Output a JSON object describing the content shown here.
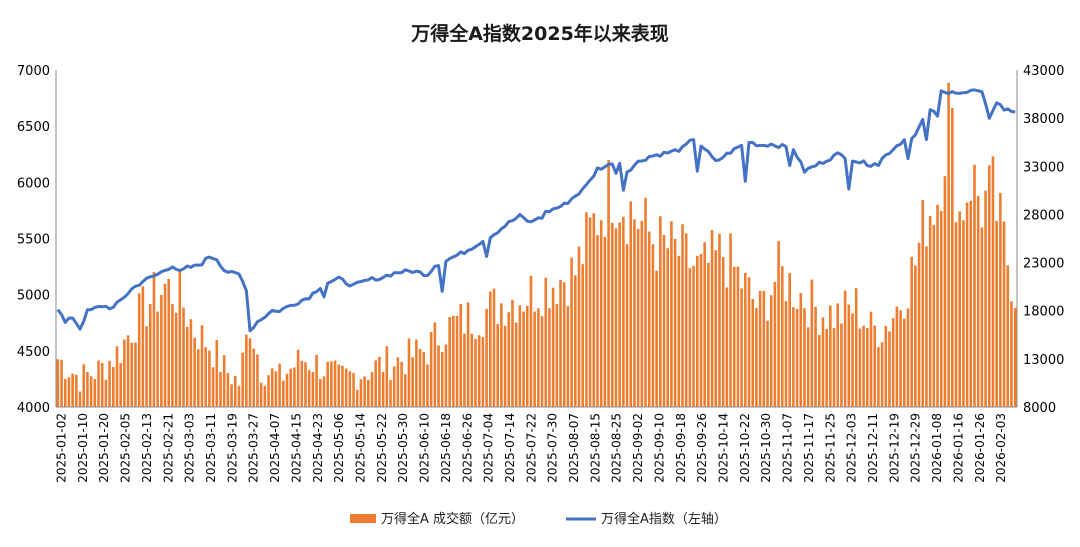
{
  "chart_data": {
    "type": "bar+line",
    "title": "万得全A指数2025年以来表现",
    "y_left": {
      "lim": [
        4000,
        7000
      ],
      "ticks": [
        "4000",
        "4500",
        "5000",
        "5500",
        "6000",
        "6500",
        "7000"
      ]
    },
    "y_right": {
      "lim": [
        8000,
        43000
      ],
      "ticks": [
        "8000",
        "13000",
        "18000",
        "23000",
        "28000",
        "33000",
        "38000",
        "43000"
      ]
    },
    "x_tick_labels": [
      "2025-01-02",
      "2025-01-10",
      "2025-01-20",
      "2025-02-05",
      "2025-02-13",
      "2025-02-21",
      "2025-03-03",
      "2025-03-11",
      "2025-03-19",
      "2025-03-27",
      "2025-04-07",
      "2025-04-15",
      "2025-04-23",
      "2025-05-06",
      "2025-05-14",
      "2025-05-22",
      "2025-05-30",
      "2025-06-10",
      "2025-06-18",
      "2025-06-26",
      "2025-07-04",
      "2025-07-14",
      "2025-07-22",
      "2025-07-30",
      "2025-08-07",
      "2025-08-15",
      "2025-08-25",
      "2025-09-02",
      "2025-09-10",
      "2025-09-18",
      "2025-09-26",
      "2025-10-14",
      "2025-10-22",
      "2025-10-30",
      "2025-11-07",
      "2025-11-17",
      "2025-11-25",
      "2025-12-03",
      "2025-12-11",
      "2025-12-19",
      "2025-12-29",
      "2026-01-08",
      "2026-01-16",
      "2026-01-26",
      "2026-02-03"
    ],
    "series": [
      {
        "name": "万得全A 成交额（亿元）",
        "axis": "right",
        "type": "bar",
        "color": "#ED7D31",
        "keypoints": [
          [
            0,
            13000
          ],
          [
            6,
            11000
          ],
          [
            12,
            12000
          ],
          [
            17,
            14000
          ],
          [
            21,
            17000
          ],
          [
            25,
            19000
          ],
          [
            29,
            20500
          ],
          [
            33,
            19500
          ],
          [
            37,
            16000
          ],
          [
            41,
            14500
          ],
          [
            45,
            12000
          ],
          [
            49,
            10500
          ],
          [
            52,
            17000
          ],
          [
            55,
            12000
          ],
          [
            60,
            11000
          ],
          [
            66,
            13000
          ],
          [
            70,
            12500
          ],
          [
            76,
            11000
          ],
          [
            82,
            11500
          ],
          [
            88,
            12500
          ],
          [
            94,
            13000
          ],
          [
            100,
            14000
          ],
          [
            104,
            16000
          ],
          [
            110,
            17000
          ],
          [
            116,
            18000
          ],
          [
            121,
            19000
          ],
          [
            126,
            19500
          ],
          [
            131,
            20500
          ],
          [
            134,
            21000
          ],
          [
            140,
            22000
          ],
          [
            145,
            27000
          ],
          [
            150,
            31000
          ],
          [
            156,
            28000
          ],
          [
            162,
            25000
          ],
          [
            168,
            24000
          ],
          [
            174,
            22000
          ],
          [
            180,
            24000
          ],
          [
            185,
            21000
          ],
          [
            190,
            18000
          ],
          [
            195,
            22000
          ],
          [
            200,
            20000
          ],
          [
            206,
            18000
          ],
          [
            211,
            17500
          ],
          [
            216,
            18500
          ],
          [
            220,
            16000
          ],
          [
            224,
            16500
          ],
          [
            228,
            19000
          ],
          [
            232,
            23000
          ],
          [
            235,
            28000
          ],
          [
            238,
            30000
          ],
          [
            241,
            39000
          ],
          [
            244,
            28000
          ],
          [
            247,
            32000
          ],
          [
            250,
            29000
          ],
          [
            253,
            30000
          ],
          [
            256,
            25000
          ],
          [
            259,
            20000
          ]
        ]
      },
      {
        "name": "万得全A指数（左轴）",
        "axis": "left",
        "type": "line",
        "color": "#4472C4",
        "keypoints": [
          [
            0,
            4880
          ],
          [
            2,
            4750
          ],
          [
            4,
            4800
          ],
          [
            6,
            4700
          ],
          [
            8,
            4850
          ],
          [
            12,
            4900
          ],
          [
            15,
            4880
          ],
          [
            17,
            4950
          ],
          [
            20,
            5050
          ],
          [
            23,
            5120
          ],
          [
            25,
            5150
          ],
          [
            27,
            5180
          ],
          [
            29,
            5220
          ],
          [
            31,
            5260
          ],
          [
            33,
            5200
          ],
          [
            35,
            5240
          ],
          [
            37,
            5250
          ],
          [
            39,
            5280
          ],
          [
            41,
            5340
          ],
          [
            43,
            5320
          ],
          [
            45,
            5220
          ],
          [
            47,
            5190
          ],
          [
            49,
            5180
          ],
          [
            51,
            5050
          ],
          [
            52,
            4680
          ],
          [
            54,
            4760
          ],
          [
            57,
            4830
          ],
          [
            60,
            4860
          ],
          [
            64,
            4920
          ],
          [
            68,
            4980
          ],
          [
            72,
            5100
          ],
          [
            76,
            5140
          ],
          [
            80,
            5080
          ],
          [
            84,
            5130
          ],
          [
            88,
            5160
          ],
          [
            92,
            5200
          ],
          [
            96,
            5210
          ],
          [
            100,
            5180
          ],
          [
            102,
            5260
          ],
          [
            106,
            5320
          ],
          [
            110,
            5380
          ],
          [
            114,
            5460
          ],
          [
            118,
            5540
          ],
          [
            122,
            5640
          ],
          [
            125,
            5700
          ],
          [
            128,
            5640
          ],
          [
            131,
            5720
          ],
          [
            134,
            5760
          ],
          [
            137,
            5800
          ],
          [
            140,
            5880
          ],
          [
            143,
            5960
          ],
          [
            146,
            6120
          ],
          [
            149,
            6150
          ],
          [
            151,
            6210
          ],
          [
            154,
            6100
          ],
          [
            157,
            6180
          ],
          [
            160,
            6230
          ],
          [
            163,
            6250
          ],
          [
            166,
            6270
          ],
          [
            169,
            6300
          ],
          [
            172,
            6390
          ],
          [
            175,
            6300
          ],
          [
            178,
            6180
          ],
          [
            181,
            6250
          ],
          [
            184,
            6310
          ],
          [
            187,
            6360
          ],
          [
            190,
            6330
          ],
          [
            193,
            6340
          ],
          [
            196,
            6320
          ],
          [
            199,
            6300
          ],
          [
            202,
            6100
          ],
          [
            205,
            6150
          ],
          [
            208,
            6200
          ],
          [
            211,
            6250
          ],
          [
            214,
            6220
          ],
          [
            217,
            6180
          ],
          [
            220,
            6160
          ],
          [
            223,
            6210
          ],
          [
            226,
            6300
          ],
          [
            229,
            6380
          ],
          [
            232,
            6420
          ],
          [
            235,
            6620
          ],
          [
            237,
            6640
          ],
          [
            239,
            6800
          ],
          [
            241,
            6790
          ],
          [
            243,
            6810
          ],
          [
            246,
            6800
          ],
          [
            248,
            6820
          ],
          [
            250,
            6790
          ],
          [
            252,
            6580
          ],
          [
            254,
            6720
          ],
          [
            256,
            6650
          ],
          [
            259,
            6630
          ]
        ],
        "overrides": [
          [
            58,
            4860
          ],
          [
            72,
            4980
          ],
          [
            86,
            5130
          ],
          [
            104,
            5030
          ],
          [
            116,
            5340
          ],
          [
            131,
            5680
          ],
          [
            143,
            5980
          ],
          [
            151,
            6080
          ],
          [
            153,
            5930
          ],
          [
            173,
            6100
          ],
          [
            186,
            6010
          ],
          [
            198,
            6150
          ],
          [
            214,
            5940
          ],
          [
            222,
            6150
          ],
          [
            230,
            6210
          ],
          [
            235,
            6380
          ],
          [
            238,
            6590
          ],
          [
            241,
            6790
          ],
          [
            253,
            6640
          ]
        ],
        "noise_amplitude": 18
      }
    ],
    "legend_position": "bottom-center",
    "grid": false
  },
  "legend": {
    "bar_label": "万得全A 成交额（亿元）",
    "line_label": "万得全A指数（左轴）"
  }
}
